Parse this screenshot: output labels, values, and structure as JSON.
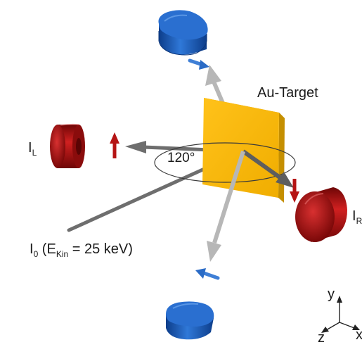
{
  "labels": {
    "target": "Au-Target",
    "angle": "120°",
    "detector_left_main": "I",
    "detector_left_sub": "L",
    "detector_right_main": "I",
    "detector_right_sub": "R",
    "beam_main": "I",
    "beam_main_sub": "0",
    "beam_paren_open": " (E",
    "beam_energy_sub": "Kin",
    "beam_energy_value": " = 25 keV)",
    "axis_y": "y",
    "axis_z": "z",
    "axis_x": "x"
  },
  "colors": {
    "target": "#f5b800",
    "target_shade": "#d99e00",
    "detector_red": "#b01010",
    "detector_blue": "#1f5fc0",
    "beam_dark": "#6b6b6b",
    "beam_light": "#b5b5b5"
  },
  "icons": {
    "detectors": [
      "red-cylinder-detector",
      "blue-cylinder-detector"
    ],
    "polarization_arrows": [
      "red-arrow",
      "blue-arrow"
    ]
  }
}
